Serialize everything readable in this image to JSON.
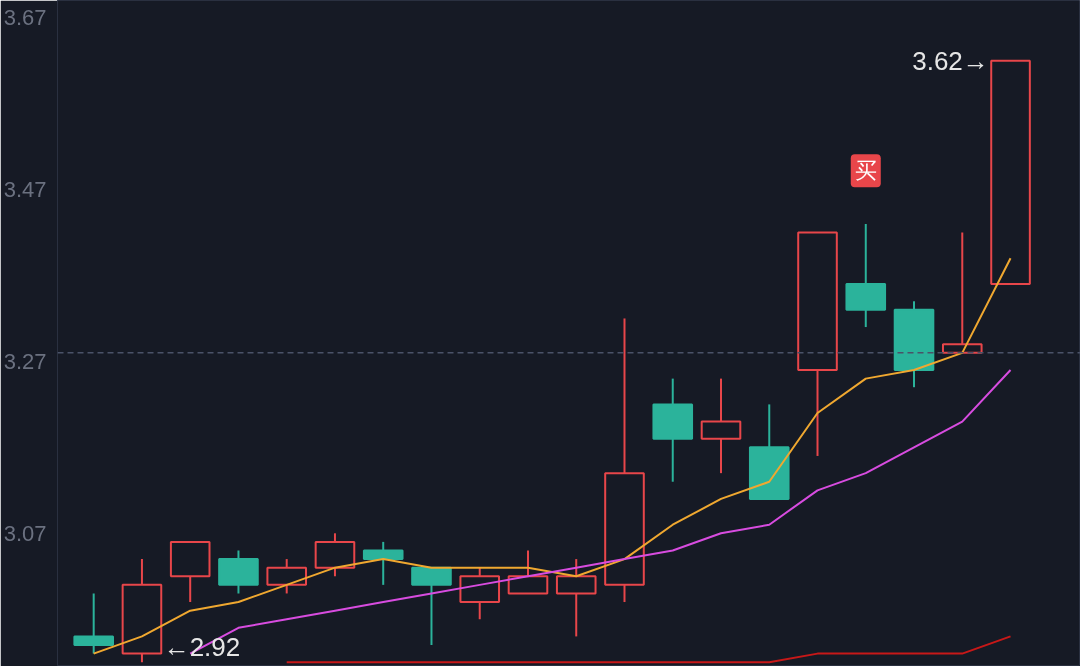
{
  "chart_data": {
    "type": "candlestick",
    "categories": [
      null,
      null,
      null,
      null,
      null,
      null,
      null,
      null,
      null,
      null,
      null,
      null,
      null,
      null,
      null,
      null,
      null,
      null,
      null,
      null
    ],
    "ohlc": [
      [
        2.95,
        3.0,
        2.93,
        2.94
      ],
      [
        2.93,
        3.04,
        2.92,
        3.01
      ],
      [
        3.02,
        3.06,
        2.99,
        3.06
      ],
      [
        3.04,
        3.05,
        3.0,
        3.01
      ],
      [
        3.01,
        3.04,
        3.0,
        3.03
      ],
      [
        3.03,
        3.07,
        3.02,
        3.06
      ],
      [
        3.05,
        3.06,
        3.01,
        3.04
      ],
      [
        3.03,
        3.03,
        2.94,
        3.01
      ],
      [
        2.99,
        3.03,
        2.97,
        3.02
      ],
      [
        3.0,
        3.05,
        3.0,
        3.02
      ],
      [
        3.0,
        3.04,
        2.95,
        3.02
      ],
      [
        3.01,
        3.32,
        2.99,
        3.14
      ],
      [
        3.22,
        3.25,
        3.13,
        3.18
      ],
      [
        3.18,
        3.25,
        3.14,
        3.2
      ],
      [
        3.17,
        3.22,
        3.11,
        3.11
      ],
      [
        3.26,
        3.42,
        3.16,
        3.42
      ],
      [
        3.36,
        3.43,
        3.31,
        3.33
      ],
      [
        3.33,
        3.34,
        3.24,
        3.26
      ],
      [
        3.28,
        3.42,
        3.28,
        3.29
      ],
      [
        3.36,
        3.62,
        3.36,
        3.62
      ]
    ],
    "colors": [
      "#2bb39b",
      "#e8464a",
      "#e8464a",
      "#2bb39b",
      "#e8464a",
      "#e8464a",
      "#2bb39b",
      "#2bb39b",
      "#e8464a",
      "#e8464a",
      "#e8464a",
      "#e8464a",
      "#2bb39b",
      "#e8464a",
      "#2bb39b",
      "#e8464a",
      "#2bb39b",
      "#2bb39b",
      "#e8464a",
      "#e8464a"
    ],
    "series": [
      {
        "type": "line",
        "color": "#f0a830",
        "values": [
          2.93,
          2.95,
          2.98,
          2.99,
          3.01,
          3.03,
          3.04,
          3.03,
          3.03,
          3.03,
          3.02,
          3.04,
          3.08,
          3.11,
          3.13,
          3.21,
          3.25,
          3.26,
          3.28,
          3.39
        ]
      },
      {
        "type": "line",
        "color": "#d84ce0",
        "values": [
          null,
          null,
          2.93,
          2.96,
          2.97,
          2.98,
          2.99,
          3.0,
          3.01,
          3.02,
          3.03,
          3.04,
          3.05,
          3.07,
          3.08,
          3.12,
          3.14,
          3.17,
          3.2,
          3.26
        ]
      },
      {
        "type": "line",
        "color": "#c81818",
        "values": [
          null,
          null,
          null,
          null,
          2.92,
          2.92,
          2.92,
          2.92,
          2.92,
          2.92,
          2.92,
          2.92,
          2.92,
          2.92,
          2.92,
          2.93,
          2.93,
          2.93,
          2.93,
          2.95
        ]
      }
    ],
    "ylim": [
      2.915,
      3.69
    ],
    "yticks": [
      3.07,
      3.27,
      3.47,
      3.67
    ],
    "ref_lines": [
      {
        "axis": "y",
        "value": 3.28,
        "color": "#4a5268",
        "line_style": "dashed"
      }
    ],
    "annotations": [
      "3.62→",
      "←2.92",
      "买"
    ],
    "grid": false,
    "tick_labels": "y"
  }
}
